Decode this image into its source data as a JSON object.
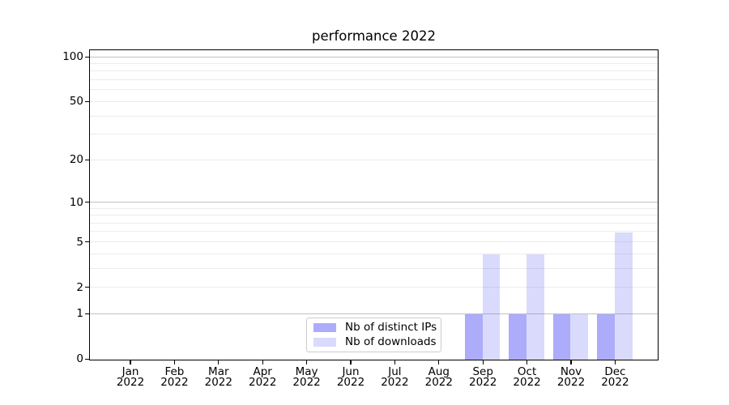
{
  "title": "performance 2022",
  "colors": {
    "bar_distinct_ips_fill": "rgba(82,82,246,0.48)",
    "bar_downloads_fill": "rgba(82,82,246,0.21)",
    "bar_distinct_ips_hex_on_white": "#a9a9f8",
    "bar_downloads_hex_on_white": "#dbdbf9",
    "grid_major": "#c2c2c2",
    "grid_minor": "#ececec",
    "axis_spine": "#000000",
    "legend_border": "#cccccc",
    "background": "#ffffff"
  },
  "chart_data": {
    "type": "bar",
    "title": "performance 2022",
    "xlabel": "",
    "ylabel": "",
    "scale": "log1p (symlog-like: 0 shown, log spacing above 1)",
    "ylim": [
      0,
      110
    ],
    "y_ticks": [
      0,
      1,
      2,
      5,
      10,
      20,
      50,
      100
    ],
    "grid_major": [
      1,
      10,
      100
    ],
    "grid_minor": [
      2,
      3,
      4,
      5,
      6,
      7,
      8,
      9,
      20,
      30,
      40,
      50,
      60,
      70,
      80,
      90
    ],
    "grid": "horizontal gridlines, both major and minor",
    "categories": [
      "Jan\n2022",
      "Feb\n2022",
      "Mar\n2022",
      "Apr\n2022",
      "May\n2022",
      "Jun\n2022",
      "Jul\n2022",
      "Aug\n2022",
      "Sep\n2022",
      "Oct\n2022",
      "Nov\n2022",
      "Dec\n2022"
    ],
    "series": [
      {
        "name": "Nb of distinct IPs",
        "fill": "rgba(82,82,246,0.48)",
        "values": [
          0,
          0,
          0,
          0,
          0,
          0,
          0,
          0,
          1,
          1,
          1,
          1
        ]
      },
      {
        "name": "Nb of downloads",
        "fill": "rgba(82,82,246,0.21)",
        "values": [
          0,
          0,
          0,
          0,
          0,
          0,
          0,
          0,
          4,
          4,
          1,
          6
        ]
      }
    ],
    "legend_position": "inside axes, lower center"
  }
}
